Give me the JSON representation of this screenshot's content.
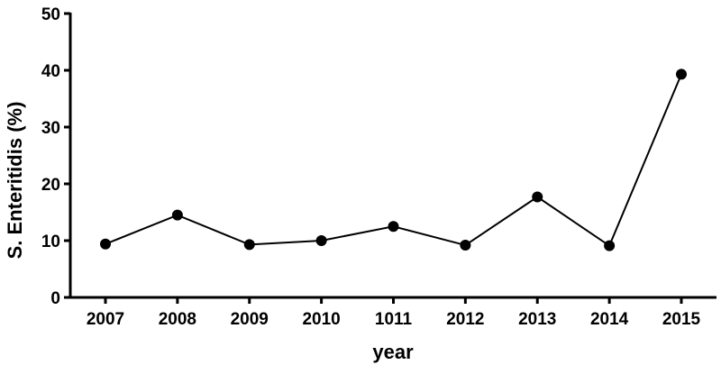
{
  "chart_data": {
    "type": "line",
    "xlabel": "year",
    "ylabel": "S. Enteritidis (%)",
    "categories": [
      "2007",
      "2008",
      "2009",
      "2010",
      "1011",
      "2012",
      "2013",
      "2014",
      "2015"
    ],
    "series": [
      {
        "values": [
          9.4,
          14.5,
          9.3,
          10.0,
          12.5,
          9.2,
          17.7,
          9.1,
          39.3
        ]
      }
    ],
    "ylim": [
      0,
      50
    ],
    "yticks": [
      0,
      10,
      20,
      30,
      40,
      50
    ],
    "grid": false,
    "legend": "none",
    "colors": {
      "line": "#000000",
      "marker": "#000000"
    }
  }
}
